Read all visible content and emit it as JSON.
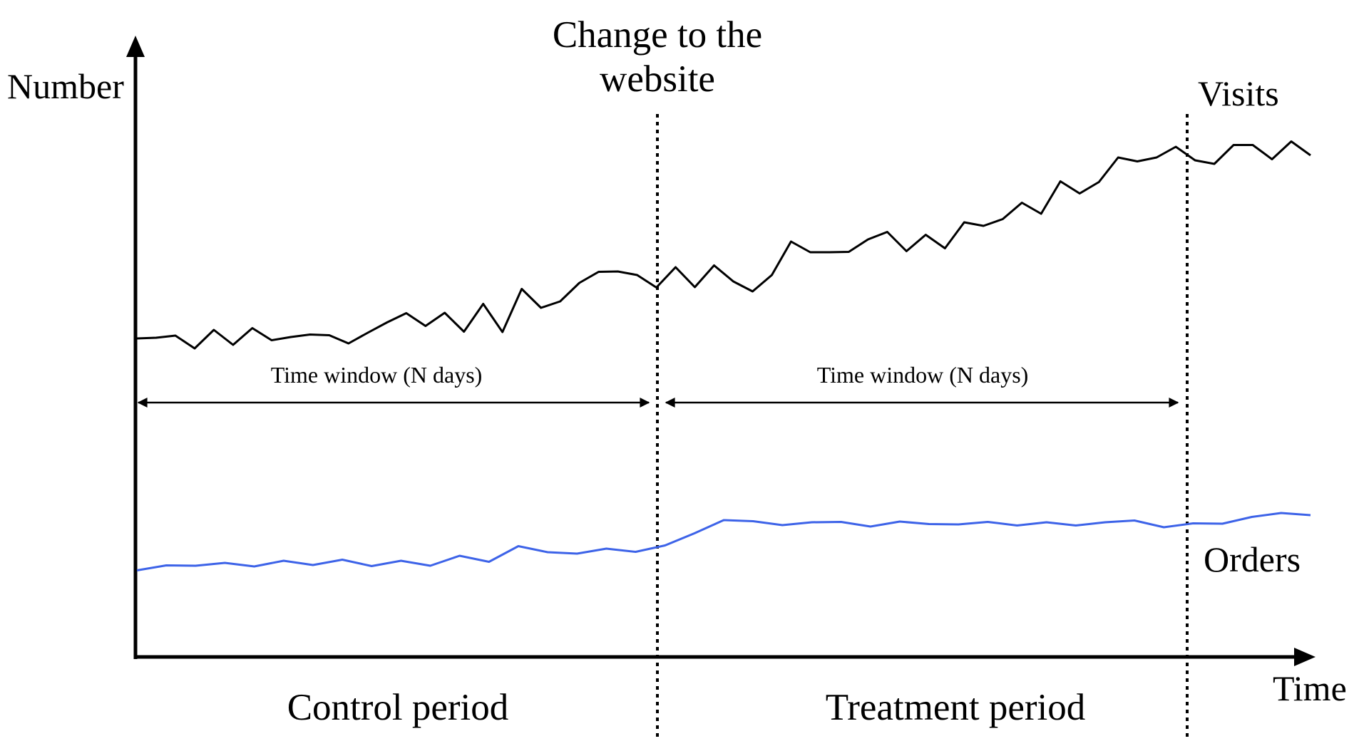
{
  "colors": {
    "visits_line": "#000000",
    "orders_line": "#3d63e8",
    "axes": "#000000"
  },
  "axes": {
    "y_label": "Number",
    "x_label": "Time"
  },
  "annotations": {
    "change_line1": "Change to the",
    "change_line2": "website",
    "window_left": "Time window (N days)",
    "window_right": "Time window (N days)",
    "control_period": "Control period",
    "treatment_period": "Treatment period"
  },
  "series": [
    {
      "name": "Visits",
      "label": "Visits",
      "values": [
        3.1,
        3.12,
        3.18,
        2.82,
        3.34,
        2.92,
        3.39,
        3.05,
        3.14,
        3.21,
        3.19,
        2.96,
        3.26,
        3.55,
        3.81,
        3.45,
        3.82,
        3.29,
        4.07,
        3.28,
        4.49,
        3.96,
        4.14,
        4.66,
        4.97,
        4.98,
        4.88,
        4.53,
        5.1,
        4.54,
        5.15,
        4.7,
        4.42,
        4.88,
        5.82,
        5.52,
        5.52,
        5.53,
        5.88,
        6.09,
        5.55,
        6.01,
        5.63,
        6.36,
        6.26,
        6.45,
        6.91,
        6.6,
        7.51,
        7.17,
        7.49,
        8.18,
        8.07,
        8.18,
        8.48,
        8.1,
        8.0,
        8.53,
        8.53,
        8.13,
        8.63,
        8.24
      ]
    },
    {
      "name": "Orders",
      "label": "Orders",
      "values": [
        -3.41,
        -3.27,
        -3.28,
        -3.2,
        -3.3,
        -3.14,
        -3.26,
        -3.11,
        -3.29,
        -3.14,
        -3.28,
        -3.0,
        -3.17,
        -2.73,
        -2.9,
        -2.94,
        -2.8,
        -2.89,
        -2.71,
        -2.37,
        -2.0,
        -2.03,
        -2.14,
        -2.06,
        -2.05,
        -2.18,
        -2.04,
        -2.11,
        -2.12,
        -2.05,
        -2.15,
        -2.06,
        -2.15,
        -2.06,
        -2.01,
        -2.2,
        -2.09,
        -2.1,
        -1.91,
        -1.8,
        -1.86
      ]
    }
  ]
}
